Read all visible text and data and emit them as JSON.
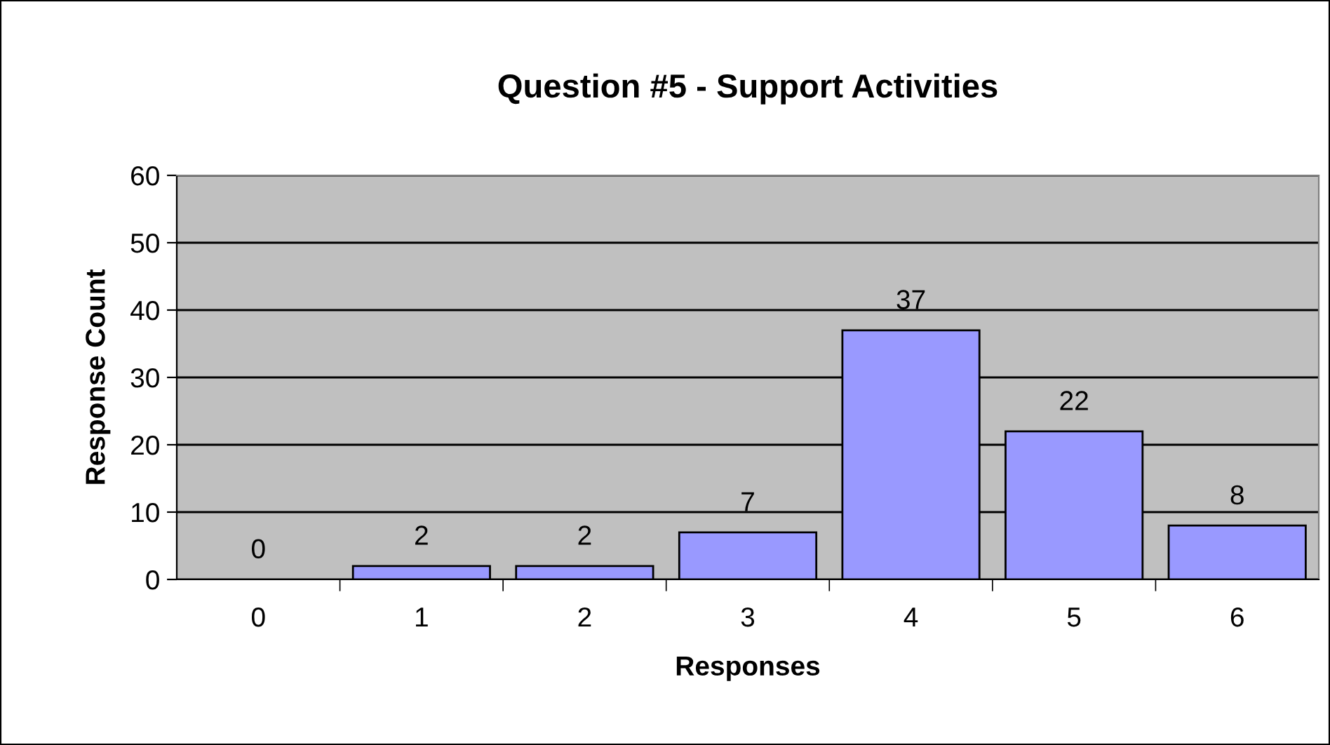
{
  "chart_data": {
    "type": "bar",
    "title": "Question #5 - Support Activities",
    "xlabel": "Responses",
    "ylabel": "Response Count",
    "categories": [
      "0",
      "1",
      "2",
      "3",
      "4",
      "5",
      "6"
    ],
    "values": [
      0,
      2,
      2,
      7,
      37,
      22,
      8
    ],
    "color": "#9999ff",
    "ylim": [
      0,
      60
    ],
    "yticks": [
      0,
      10,
      20,
      30,
      40,
      50,
      60
    ],
    "grid": "y",
    "data_labels": true
  }
}
